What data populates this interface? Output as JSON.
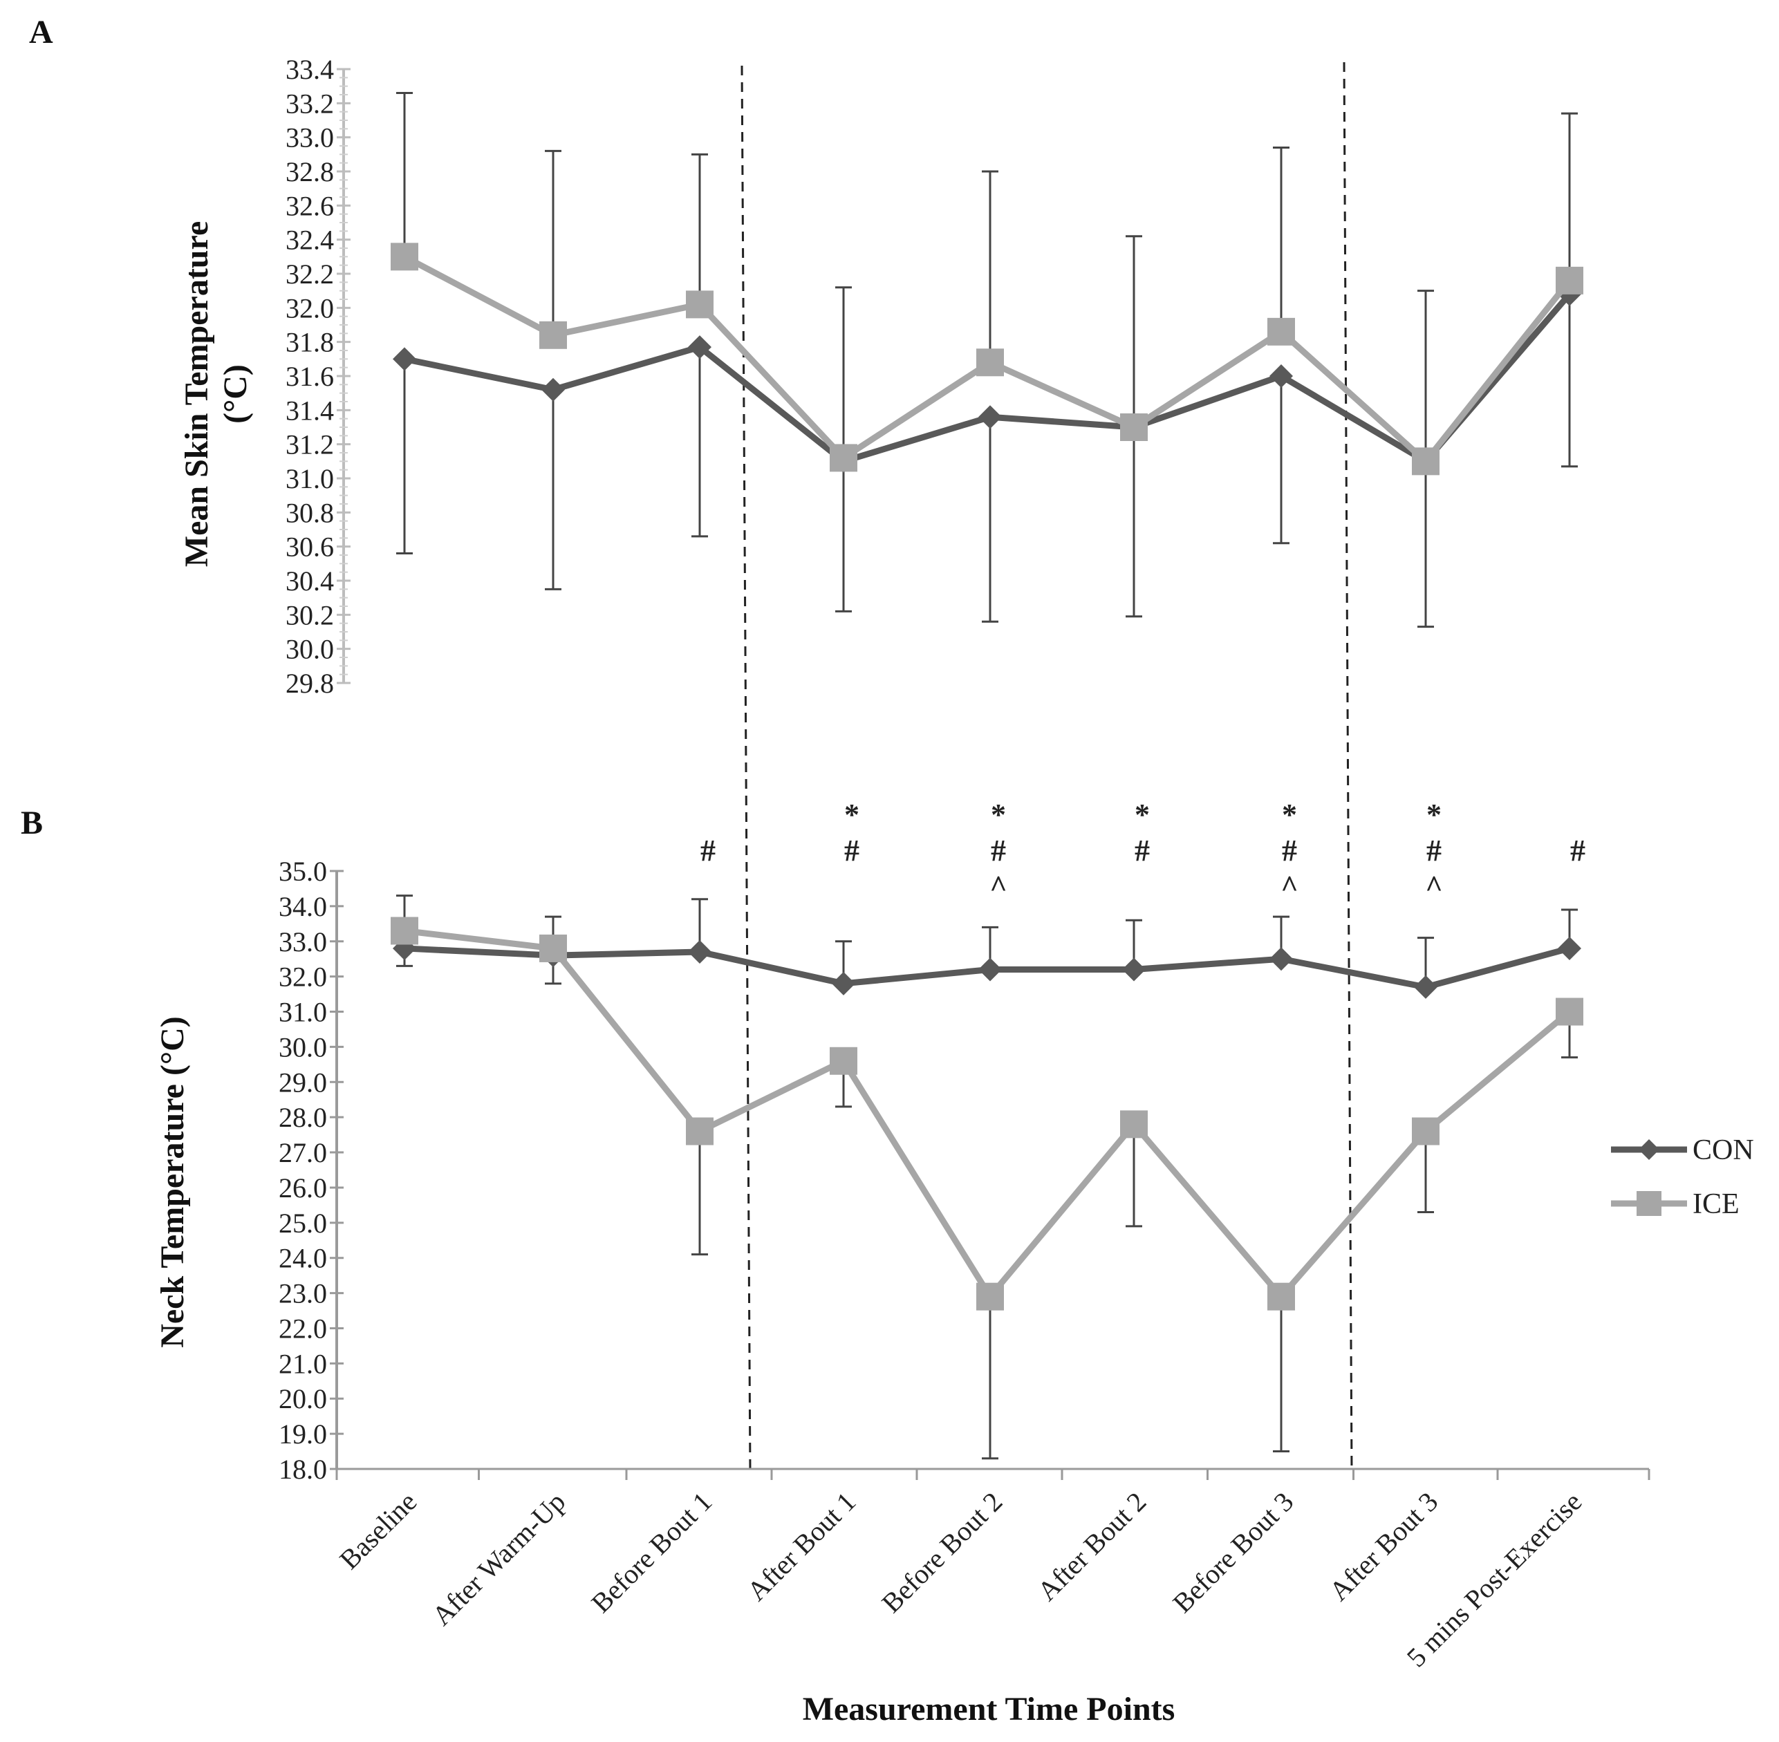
{
  "chart_data": [
    {
      "panel": "A",
      "type": "line",
      "ylabel_lines": [
        "Mean Skin Temperature",
        "(°C)"
      ],
      "ylim": [
        29.8,
        33.4
      ],
      "ytick_step": 0.2,
      "yticks": [
        "29.8",
        "30.0",
        "30.2",
        "30.4",
        "30.6",
        "30.8",
        "31.0",
        "31.2",
        "31.4",
        "31.6",
        "31.8",
        "32.0",
        "32.2",
        "32.4",
        "32.6",
        "32.8",
        "33.0",
        "33.2",
        "33.4"
      ],
      "categories": [
        "Baseline",
        "After Warm-Up",
        "Before Bout 1",
        "After Bout 1",
        "Before Bout 2",
        "After Bout 2",
        "Before Bout 3",
        "After Bout 3",
        "5 mins Post-Exercise"
      ],
      "series": [
        {
          "name": "CON",
          "marker": "diamond",
          "color": "#595959",
          "values": [
            31.7,
            31.52,
            31.77,
            31.1,
            31.36,
            31.3,
            31.6,
            31.1,
            32.08
          ],
          "err_low": [
            1.14,
            1.17,
            1.11,
            0.88,
            1.2,
            1.11,
            0.98,
            0.97,
            1.01
          ]
        },
        {
          "name": "ICE",
          "marker": "square",
          "color": "#a6a6a6",
          "values": [
            32.3,
            31.84,
            32.02,
            31.12,
            31.68,
            31.3,
            31.86,
            31.1,
            32.16
          ],
          "err_high": [
            0.96,
            1.08,
            0.88,
            1.0,
            1.12,
            1.12,
            1.08,
            1.0,
            0.98
          ]
        }
      ]
    },
    {
      "panel": "B",
      "type": "line",
      "ylabel": "Neck Temperature (°C)",
      "xlabel": "Measurement Time Points",
      "ylim": [
        18.0,
        35.0
      ],
      "ytick_step": 1.0,
      "yticks": [
        "18.0",
        "19.0",
        "20.0",
        "21.0",
        "22.0",
        "23.0",
        "24.0",
        "25.0",
        "26.0",
        "27.0",
        "28.0",
        "29.0",
        "30.0",
        "31.0",
        "32.0",
        "33.0",
        "34.0",
        "35.0"
      ],
      "categories": [
        "Baseline",
        "After Warm-Up",
        "Before Bout 1",
        "After Bout 1",
        "Before Bout 2",
        "After Bout 2",
        "Before Bout 3",
        "After Bout 3",
        "5 mins Post-Exercise"
      ],
      "series": [
        {
          "name": "CON",
          "marker": "diamond",
          "color": "#595959",
          "values": [
            32.8,
            32.6,
            32.7,
            31.8,
            32.2,
            32.2,
            32.5,
            31.7,
            32.8
          ],
          "err_high": [
            1.5,
            1.1,
            1.5,
            1.2,
            1.2,
            1.4,
            1.2,
            1.4,
            1.1
          ]
        },
        {
          "name": "ICE",
          "marker": "square",
          "color": "#a6a6a6",
          "values": [
            33.3,
            32.8,
            27.6,
            29.6,
            22.9,
            27.8,
            22.9,
            27.6,
            31.0
          ],
          "err_low": [
            1.0,
            1.0,
            3.5,
            1.3,
            4.6,
            2.9,
            4.4,
            2.3,
            1.3
          ]
        }
      ],
      "annotations": [
        {
          "category": "Before Bout 1",
          "symbols": [
            "#"
          ]
        },
        {
          "category": "After Bout 1",
          "symbols": [
            "*",
            "#"
          ]
        },
        {
          "category": "Before Bout 2",
          "symbols": [
            "*",
            "#",
            "^"
          ]
        },
        {
          "category": "After Bout 2",
          "symbols": [
            "*",
            "#"
          ]
        },
        {
          "category": "Before Bout 3",
          "symbols": [
            "*",
            "#",
            "^"
          ]
        },
        {
          "category": "After Bout 3",
          "symbols": [
            "*",
            "#",
            "^"
          ]
        },
        {
          "category": "5 mins Post-Exercise",
          "symbols": [
            "#"
          ]
        }
      ],
      "legend": {
        "position": "right",
        "entries": [
          "CON",
          "ICE"
        ]
      }
    }
  ]
}
